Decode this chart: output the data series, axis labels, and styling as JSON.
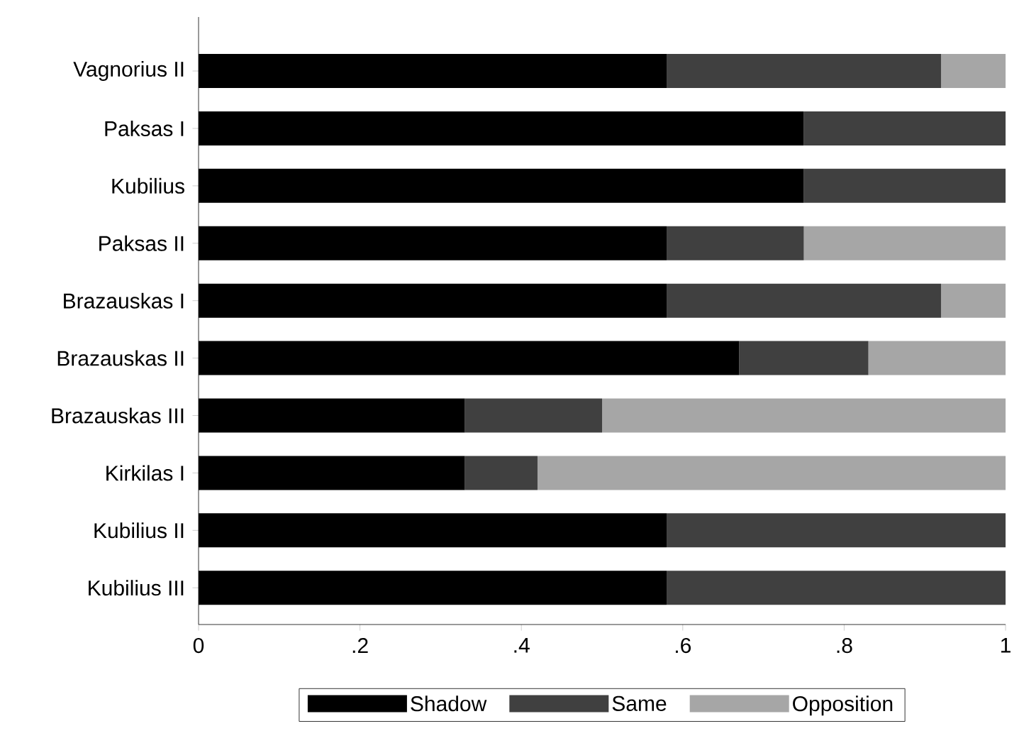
{
  "chart_data": {
    "type": "bar",
    "orientation": "horizontal",
    "stacked": true,
    "categories": [
      "Vagnorius II",
      "Paksas I",
      "Kubilius",
      "Paksas II",
      "Brazauskas I",
      "Brazauskas II",
      "Brazauskas III",
      "Kirkilas I",
      "Kubilius II",
      "Kubilius III"
    ],
    "series": [
      {
        "name": "Shadow",
        "color": "#000000",
        "values": [
          0.58,
          0.75,
          0.75,
          0.58,
          0.58,
          0.67,
          0.33,
          0.33,
          0.58,
          0.58
        ]
      },
      {
        "name": "Same",
        "color": "#404040",
        "values": [
          0.34,
          0.25,
          0.25,
          0.17,
          0.34,
          0.16,
          0.17,
          0.09,
          0.42,
          0.42
        ]
      },
      {
        "name": "Opposition",
        "color": "#a6a6a6",
        "values": [
          0.08,
          0,
          0,
          0.25,
          0.08,
          0.17,
          0.5,
          0.58,
          0,
          0
        ]
      }
    ],
    "xlim": [
      0,
      1
    ],
    "xticks": [
      0,
      {
        "value": 0.2,
        "label": ".2"
      },
      {
        "value": 0.4,
        "label": ".4"
      },
      {
        "value": 0.6,
        "label": ".6"
      },
      {
        "value": 0.8,
        "label": ".8"
      },
      1
    ],
    "legend": "bottom",
    "grid": false
  }
}
